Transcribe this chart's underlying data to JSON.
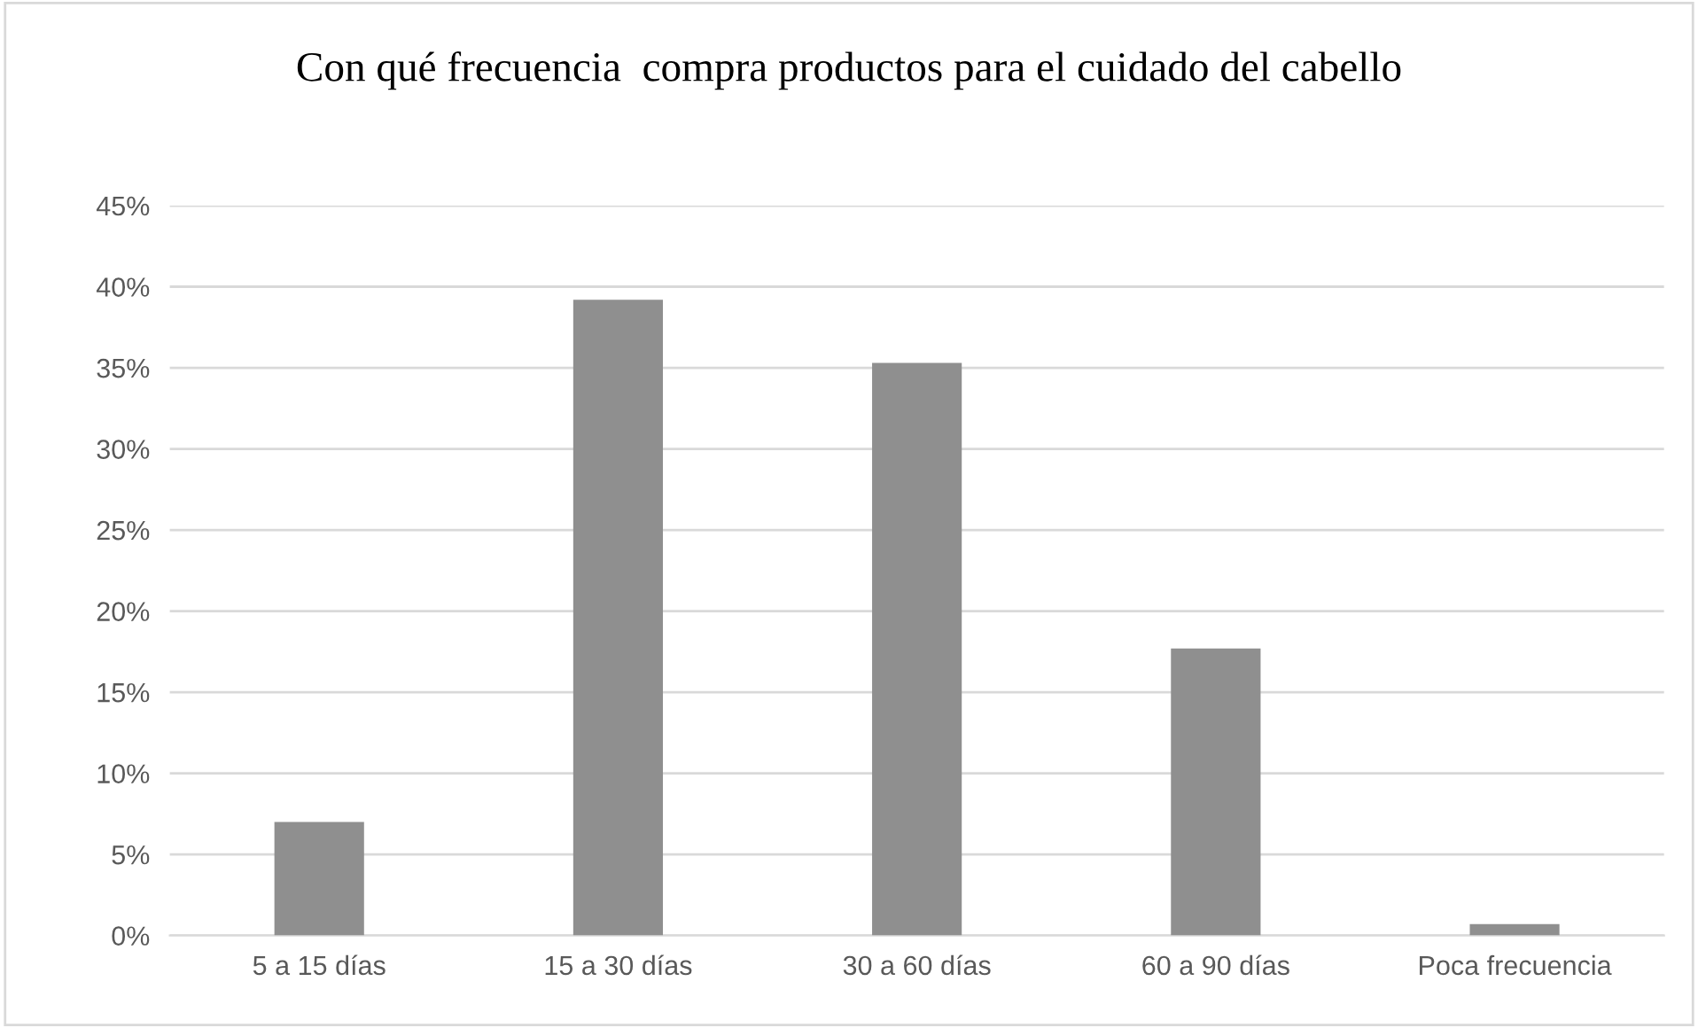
{
  "chart_data": {
    "type": "bar",
    "title": "Con qué frecuencia  compra productos para el cuidado del cabello",
    "categories": [
      "5 a 15 días",
      "15 a 30 días",
      "30 a 60 días",
      "60 a 90 días",
      "Poca frecuencia"
    ],
    "values": [
      7.0,
      39.2,
      35.3,
      17.7,
      0.7
    ],
    "color": "#8f8f8f",
    "ylim": [
      0,
      45
    ],
    "yticks": [
      {
        "value": 0,
        "label": "0%"
      },
      {
        "value": 5,
        "label": "5%"
      },
      {
        "value": 10,
        "label": "10%"
      },
      {
        "value": 15,
        "label": "15%"
      },
      {
        "value": 20,
        "label": "20%"
      },
      {
        "value": 25,
        "label": "25%"
      },
      {
        "value": 30,
        "label": "30%"
      },
      {
        "value": 35,
        "label": "35%"
      },
      {
        "value": 40,
        "label": "40%"
      },
      {
        "value": 45,
        "label": "45%"
      }
    ],
    "grid": "y",
    "legend": false
  }
}
